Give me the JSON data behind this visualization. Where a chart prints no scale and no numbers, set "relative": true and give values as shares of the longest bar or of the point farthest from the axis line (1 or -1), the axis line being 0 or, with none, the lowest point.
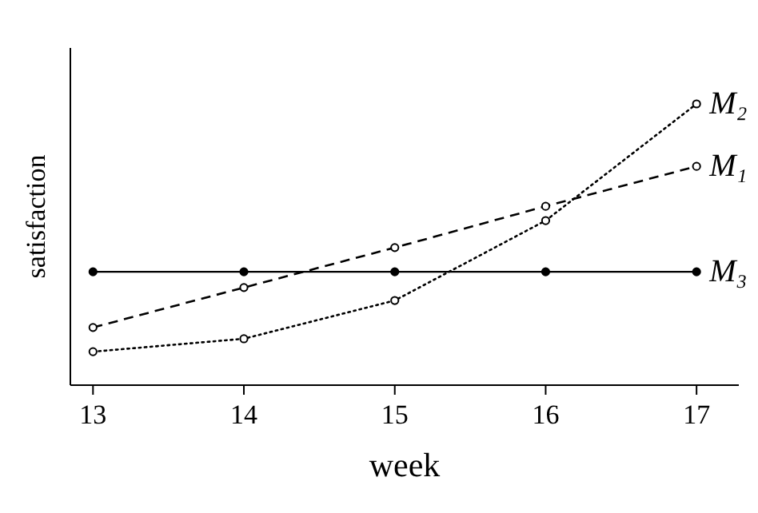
{
  "chart_data": {
    "type": "line",
    "xlabel": "week",
    "ylabel": "satisfaction",
    "relative": true,
    "xlim": [
      12.85,
      17.28
    ],
    "xticks": [
      13,
      14,
      15,
      16,
      17
    ],
    "x": [
      13,
      14,
      15,
      16,
      17
    ],
    "grid": false,
    "series": [
      {
        "name": "M₂",
        "color": "#000000",
        "line_style": "dotted",
        "marker": "circle",
        "values": [
          0.119,
          0.165,
          0.301,
          0.585,
          1
        ]
      },
      {
        "name": "M₁",
        "color": "#000000",
        "line_style": "dashed",
        "marker": "circle",
        "values": [
          0.205,
          0.347,
          0.489,
          0.636,
          0.778
        ]
      },
      {
        "name": "M₃",
        "color": "#000000",
        "line_style": "solid",
        "marker": "circle",
        "values": [
          0.403,
          0.403,
          0.403,
          0.403,
          0.403
        ]
      }
    ]
  }
}
